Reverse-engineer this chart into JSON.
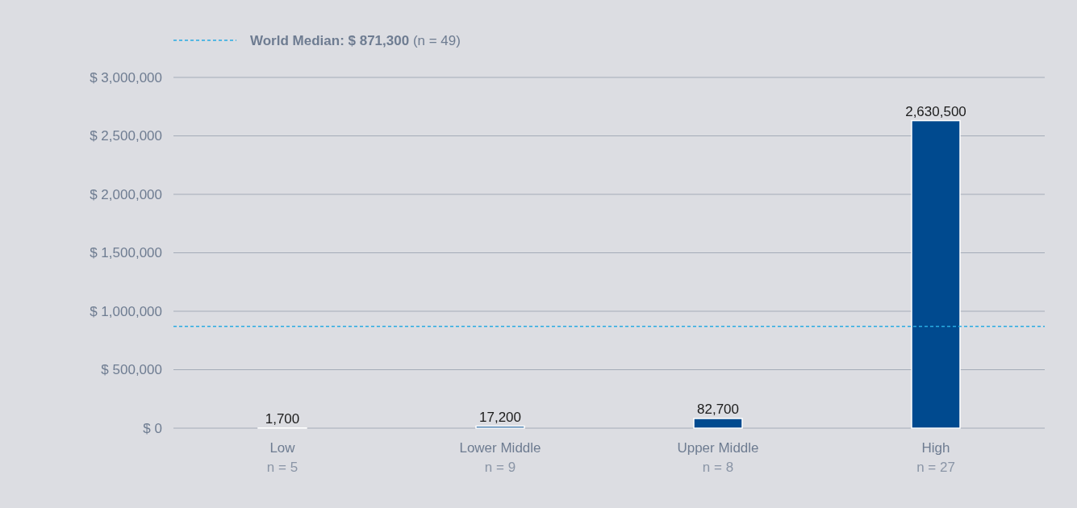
{
  "chart_data": {
    "type": "bar",
    "categories": [
      "Low\nn = 5",
      "Lower Middle\nn = 9",
      "Upper Middle\nn = 8",
      "High\nn = 27"
    ],
    "values": [
      1700,
      17200,
      82700,
      2630500
    ],
    "color": "#004a8f",
    "ylim": [
      0,
      3000000
    ],
    "yticks": [
      {
        "value": 0,
        "label": "$ 0"
      },
      {
        "value": 500000,
        "label": "$ 500,000"
      },
      {
        "value": 1000000,
        "label": "$ 1,000,000"
      },
      {
        "value": 1500000,
        "label": "$ 1,500,000"
      },
      {
        "value": 2000000,
        "label": "$ 2,000,000"
      },
      {
        "value": 2500000,
        "label": "$ 2,500,000"
      },
      {
        "value": 3000000,
        "label": "$ 3,000,000"
      }
    ],
    "grid": "y",
    "value_labels": [
      "1,700",
      "17,200",
      "82,700",
      "2,630,500"
    ],
    "legend": "top left",
    "ref_lines": [
      {
        "axis": "y",
        "value": 871300,
        "label": "World Median: $ 871,300 (n = 49)",
        "color": "#29abe2",
        "line_style": "dashed"
      }
    ]
  }
}
